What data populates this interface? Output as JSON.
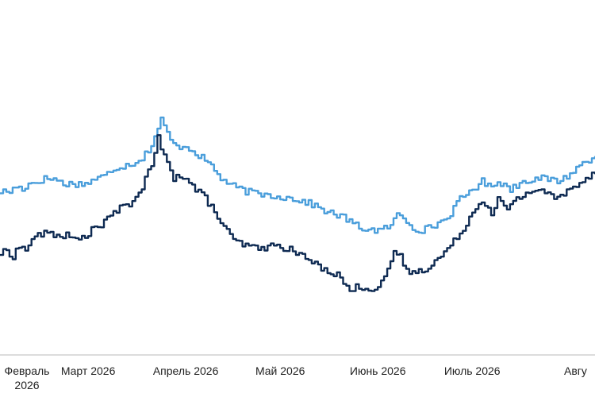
{
  "chart_data": {
    "type": "line",
    "title": "",
    "xlabel": "",
    "ylabel": "",
    "grid": false,
    "x_tick_labels": [
      {
        "date": "2026-02-01",
        "lines": [
          "Февраль",
          "2026"
        ]
      },
      {
        "date": "2026-03-01",
        "lines": [
          "Март 2026"
        ]
      },
      {
        "date": "2026-04-01",
        "lines": [
          "Апрель 2026"
        ]
      },
      {
        "date": "2026-05-01",
        "lines": [
          "Май 2026"
        ]
      },
      {
        "date": "2026-06-01",
        "lines": [
          "Июнь 2026"
        ]
      },
      {
        "date": "2026-07-01",
        "lines": [
          "Июль 2026"
        ]
      },
      {
        "date": "2026-08-01",
        "lines": [
          "Авгу"
        ]
      }
    ],
    "xlim": [
      "2026-02-01",
      "2026-08-09"
    ],
    "ylim": [
      0,
      100
    ],
    "colors": {
      "series_light": "#4a9edb",
      "series_dark": "#0e2a52",
      "axis": "#b8b8b8",
      "tick_text": "#222222"
    },
    "series": [
      {
        "color_key": "series_light",
        "points": [
          [
            "2026-02-01",
            55
          ],
          [
            "2026-02-04",
            55
          ],
          [
            "2026-02-06",
            57
          ],
          [
            "2026-02-08",
            56
          ],
          [
            "2026-02-10",
            58
          ],
          [
            "2026-02-13",
            59
          ],
          [
            "2026-02-15",
            60
          ],
          [
            "2026-02-18",
            60
          ],
          [
            "2026-02-21",
            58
          ],
          [
            "2026-02-24",
            58
          ],
          [
            "2026-02-28",
            58
          ],
          [
            "2026-03-03",
            60
          ],
          [
            "2026-03-06",
            61
          ],
          [
            "2026-03-09",
            64
          ],
          [
            "2026-03-12",
            65
          ],
          [
            "2026-03-15",
            66
          ],
          [
            "2026-03-18",
            68
          ],
          [
            "2026-03-21",
            73
          ],
          [
            "2026-03-24",
            83
          ],
          [
            "2026-03-25",
            80
          ],
          [
            "2026-03-27",
            75
          ],
          [
            "2026-03-29",
            72
          ],
          [
            "2026-03-31",
            73
          ],
          [
            "2026-04-03",
            71
          ],
          [
            "2026-04-06",
            68
          ],
          [
            "2026-04-09",
            65
          ],
          [
            "2026-04-12",
            60
          ],
          [
            "2026-04-16",
            57
          ],
          [
            "2026-04-20",
            55
          ],
          [
            "2026-04-25",
            54
          ],
          [
            "2026-05-01",
            53
          ],
          [
            "2026-05-06",
            52
          ],
          [
            "2026-05-11",
            50
          ],
          [
            "2026-05-16",
            47
          ],
          [
            "2026-05-21",
            45
          ],
          [
            "2026-05-26",
            41
          ],
          [
            "2026-05-31",
            40
          ],
          [
            "2026-06-02",
            40
          ],
          [
            "2026-06-05",
            42
          ],
          [
            "2026-06-07",
            46
          ],
          [
            "2026-06-09",
            45
          ],
          [
            "2026-06-12",
            41
          ],
          [
            "2026-06-15",
            40
          ],
          [
            "2026-06-19",
            42
          ],
          [
            "2026-06-23",
            45
          ],
          [
            "2026-06-27",
            52
          ],
          [
            "2026-07-01",
            56
          ],
          [
            "2026-07-04",
            59
          ],
          [
            "2026-07-06",
            57
          ],
          [
            "2026-07-09",
            59
          ],
          [
            "2026-07-13",
            56
          ],
          [
            "2026-07-17",
            59
          ],
          [
            "2026-07-20",
            60
          ],
          [
            "2026-07-24",
            60
          ],
          [
            "2026-07-28",
            59
          ],
          [
            "2026-07-31",
            61
          ],
          [
            "2026-08-02",
            63
          ],
          [
            "2026-08-05",
            66
          ],
          [
            "2026-08-09",
            69
          ]
        ]
      },
      {
        "color_key": "series_dark",
        "points": [
          [
            "2026-02-01",
            31
          ],
          [
            "2026-02-03",
            32
          ],
          [
            "2026-02-05",
            30
          ],
          [
            "2026-02-07",
            34
          ],
          [
            "2026-02-09",
            32
          ],
          [
            "2026-02-11",
            37
          ],
          [
            "2026-02-13",
            38
          ],
          [
            "2026-02-16",
            39
          ],
          [
            "2026-02-19",
            38
          ],
          [
            "2026-02-22",
            38
          ],
          [
            "2026-02-25",
            36
          ],
          [
            "2026-02-28",
            38
          ],
          [
            "2026-03-03",
            41
          ],
          [
            "2026-03-06",
            43
          ],
          [
            "2026-03-09",
            47
          ],
          [
            "2026-03-12",
            49
          ],
          [
            "2026-03-15",
            51
          ],
          [
            "2026-03-18",
            57
          ],
          [
            "2026-03-21",
            65
          ],
          [
            "2026-03-23",
            76
          ],
          [
            "2026-03-24",
            71
          ],
          [
            "2026-03-26",
            66
          ],
          [
            "2026-03-28",
            60
          ],
          [
            "2026-03-29",
            62
          ],
          [
            "2026-03-31",
            61
          ],
          [
            "2026-04-03",
            57
          ],
          [
            "2026-04-06",
            54
          ],
          [
            "2026-04-09",
            49
          ],
          [
            "2026-04-12",
            43
          ],
          [
            "2026-04-16",
            36
          ],
          [
            "2026-04-20",
            34
          ],
          [
            "2026-04-24",
            33
          ],
          [
            "2026-04-29",
            34
          ],
          [
            "2026-05-03",
            33
          ],
          [
            "2026-05-08",
            30
          ],
          [
            "2026-05-13",
            26
          ],
          [
            "2026-05-17",
            24
          ],
          [
            "2026-05-20",
            22
          ],
          [
            "2026-05-23",
            16
          ],
          [
            "2026-05-25",
            18
          ],
          [
            "2026-05-28",
            18
          ],
          [
            "2026-05-31",
            17
          ],
          [
            "2026-06-03",
            21
          ],
          [
            "2026-06-05",
            27
          ],
          [
            "2026-06-06",
            32
          ],
          [
            "2026-06-08",
            30
          ],
          [
            "2026-06-10",
            24
          ],
          [
            "2026-06-14",
            24
          ],
          [
            "2026-06-17",
            26
          ],
          [
            "2026-06-20",
            29
          ],
          [
            "2026-06-24",
            34
          ],
          [
            "2026-06-27",
            39
          ],
          [
            "2026-07-01",
            47
          ],
          [
            "2026-07-04",
            52
          ],
          [
            "2026-07-07",
            47
          ],
          [
            "2026-07-09",
            52
          ],
          [
            "2026-07-12",
            48
          ],
          [
            "2026-07-15",
            52
          ],
          [
            "2026-07-19",
            55
          ],
          [
            "2026-07-23",
            56
          ],
          [
            "2026-07-27",
            52
          ],
          [
            "2026-07-31",
            55
          ],
          [
            "2026-08-03",
            58
          ],
          [
            "2026-08-06",
            60
          ],
          [
            "2026-08-09",
            63
          ]
        ]
      }
    ]
  }
}
